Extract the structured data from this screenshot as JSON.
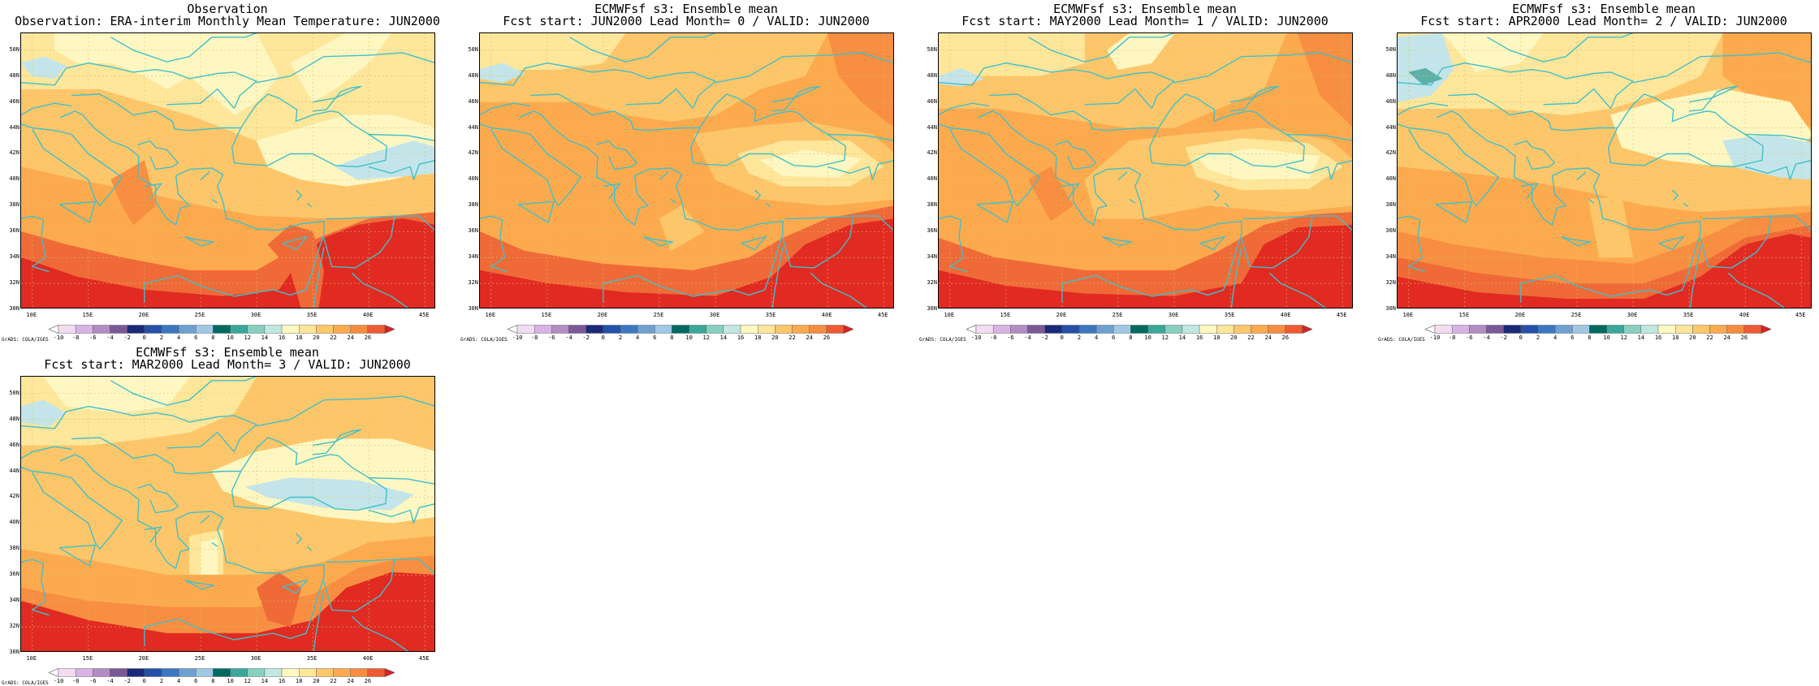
{
  "panels": [
    {
      "title1": "Observation",
      "title2": "Observation: ERA-interim Monthly Mean Temperature: JUN2000"
    },
    {
      "title1": "ECMWFsf s3: Ensemble mean",
      "title2": "Fcst start: JUN2000  Lead Month= 0 / VALID: JUN2000"
    },
    {
      "title1": "ECMWFsf s3: Ensemble mean",
      "title2": "Fcst start: MAY2000  Lead Month= 1 / VALID: JUN2000"
    },
    {
      "title1": "ECMWFsf s3: Ensemble mean",
      "title2": "Fcst start: APR2000  Lead Month= 2 / VALID: JUN2000"
    },
    {
      "title1": "ECMWFsf s3: Ensemble mean",
      "title2": "Fcst start: MAR2000  Lead Month= 3 / VALID: JUN2000"
    }
  ],
  "map": {
    "lon_labels": [
      "10E",
      "15E",
      "20E",
      "25E",
      "30E",
      "35E",
      "40E",
      "45E"
    ],
    "lat_labels": [
      "50N",
      "48N",
      "46N",
      "44N",
      "42N",
      "40N",
      "38N",
      "36N",
      "34N",
      "32N",
      "30N"
    ],
    "lon_range": [
      9,
      46
    ],
    "lat_range": [
      30,
      51.3
    ],
    "coast_color": "#40c0c8",
    "grid_color": "#d8c060"
  },
  "colorbar": {
    "labels": [
      "-10",
      "-8",
      "-6",
      "-4",
      "-2",
      "0",
      "2",
      "4",
      "6",
      "8",
      "10",
      "12",
      "14",
      "16",
      "18",
      "20",
      "22",
      "24",
      "26"
    ],
    "colors": [
      "#ffffff",
      "#f2dcf2",
      "#d9b3e6",
      "#b38cc4",
      "#7a5a96",
      "#1a2a78",
      "#2450a8",
      "#3a78c0",
      "#6ea0d0",
      "#a0c8e4",
      "#006a60",
      "#3aa898",
      "#86d0c0",
      "#c0e8e0",
      "#fff8c0",
      "#ffe69a",
      "#fec76a",
      "#fdaa4e",
      "#f88c40",
      "#ee5a32",
      "#dd2020"
    ],
    "credit": "GrADS: COLA/IGES"
  }
}
